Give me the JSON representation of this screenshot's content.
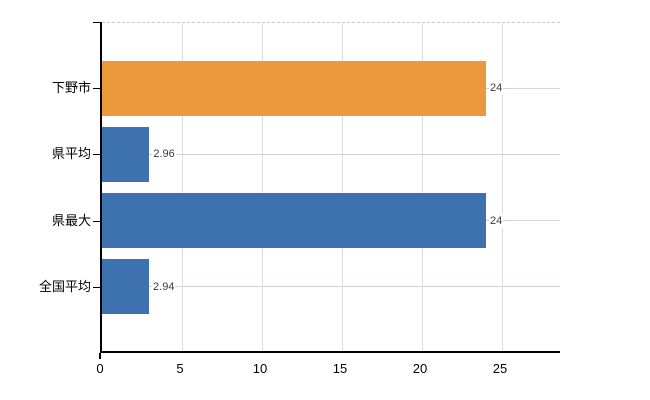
{
  "chart_data": {
    "type": "bar",
    "orientation": "horizontal",
    "title": "",
    "xlabel": "",
    "ylabel": "",
    "categories": [
      "下野市",
      "県平均",
      "県最大",
      "全国平均"
    ],
    "values": [
      24,
      2.96,
      24,
      2.94
    ],
    "value_labels": [
      "24",
      "2.96",
      "24",
      "2.94"
    ],
    "bar_colors": [
      "#EC993D",
      "#3E71B0",
      "#3E71B0",
      "#3E71B0"
    ],
    "x_ticks": [
      0,
      5,
      10,
      15,
      20,
      25
    ],
    "x_tick_labels": [
      "0",
      "5",
      "10",
      "15",
      "20",
      "25"
    ],
    "xlim": [
      0,
      28.75
    ],
    "grid": true,
    "legend": "none"
  },
  "colors": {
    "background": "#ffffff",
    "axis": "#000000",
    "vertical_grid": "#dbdbdb",
    "row_grid": "#cdd8cd",
    "top_boundary": "#c8c8c8",
    "value_text": "#3a3a3a",
    "label_text": "#000000",
    "bar_orange": "#EC993D",
    "bar_blue": "#3E71B0"
  }
}
